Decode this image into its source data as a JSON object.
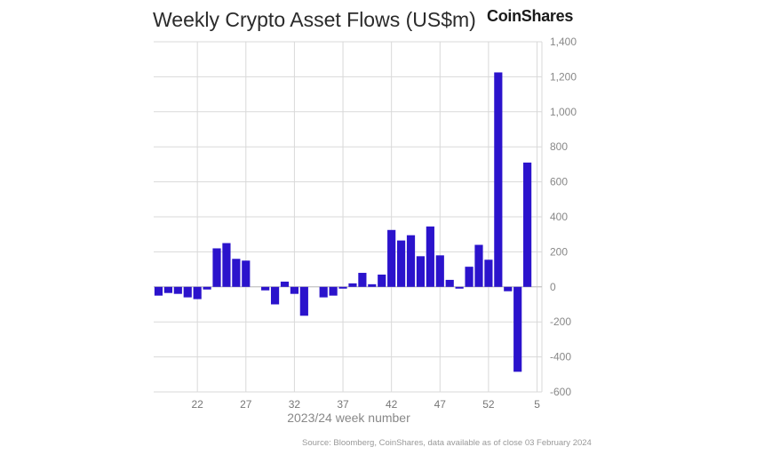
{
  "header": {
    "title": "Weekly Crypto Asset Flows (US$m)",
    "brand": "CoinShares"
  },
  "footer": {
    "source": "Source: Bloomberg, CoinShares, data available as of close 03 February 2024"
  },
  "chart_data": {
    "type": "bar",
    "title": "Weekly Crypto Asset Flows (US$m)",
    "xlabel": "2023/24 week number",
    "ylabel": "",
    "ylim": [
      -600,
      1400
    ],
    "yticks": [
      1400,
      1200,
      1000,
      800,
      600,
      400,
      200,
      0,
      -200,
      -400,
      -600
    ],
    "ytick_labels": [
      "1,400",
      "1,200",
      "1,000",
      "800",
      "600",
      "400",
      "200",
      "0",
      "-200",
      "-400",
      "-600"
    ],
    "x_tick_labels": [
      {
        "week": 22,
        "label": "22"
      },
      {
        "week": 27,
        "label": "27"
      },
      {
        "week": 32,
        "label": "32"
      },
      {
        "week": 37,
        "label": "37"
      },
      {
        "week": 42,
        "label": "42"
      },
      {
        "week": 47,
        "label": "47"
      },
      {
        "week": 52,
        "label": "52"
      },
      {
        "week": 5,
        "label": "5"
      }
    ],
    "grid": true,
    "y_axis_side": "right",
    "bar_color": "#2b13cc",
    "categories": [
      "18",
      "19",
      "20",
      "21",
      "22",
      "23",
      "24",
      "25",
      "26",
      "27",
      "28",
      "29",
      "30",
      "31",
      "32",
      "33",
      "34",
      "35",
      "36",
      "37",
      "38",
      "39",
      "40",
      "41",
      "42",
      "43",
      "44",
      "45",
      "46",
      "47",
      "48",
      "49",
      "50",
      "51",
      "52",
      "1",
      "2",
      "3",
      "4",
      "5"
    ],
    "values": [
      -50,
      -35,
      -40,
      -60,
      -70,
      -15,
      220,
      250,
      160,
      150,
      0,
      -20,
      -100,
      30,
      -40,
      -165,
      0,
      -60,
      -50,
      -10,
      20,
      80,
      15,
      70,
      325,
      265,
      295,
      175,
      345,
      180,
      40,
      -10,
      115,
      240,
      155,
      1225,
      -25,
      -485,
      710,
      0
    ]
  }
}
